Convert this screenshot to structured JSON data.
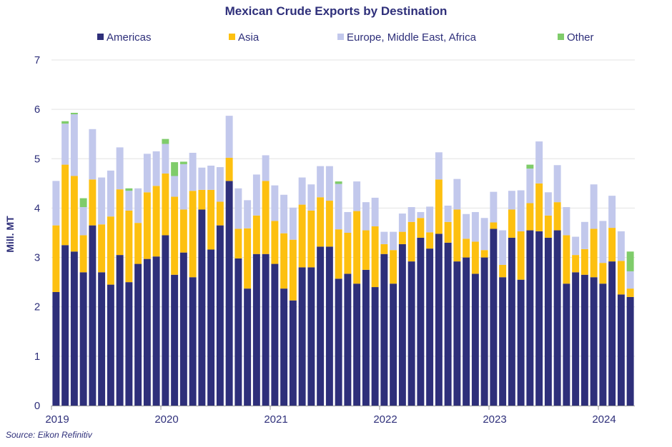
{
  "chart_data": {
    "type": "bar",
    "stacked": true,
    "title": "Mexican Crude Exports by Destination",
    "ylabel": "Mill. MT",
    "xlabel": "",
    "ylim": [
      0,
      7
    ],
    "yticks": [
      0,
      1,
      2,
      3,
      4,
      5,
      6,
      7
    ],
    "grid": "horizontal",
    "legend_position": "top",
    "source": "Source: Eikon Refinitiv",
    "x_year_labels": [
      {
        "label": "2019",
        "index": 0
      },
      {
        "label": "2020",
        "index": 12
      },
      {
        "label": "2021",
        "index": 24
      },
      {
        "label": "2022",
        "index": 36
      },
      {
        "label": "2023",
        "index": 48
      },
      {
        "label": "2024",
        "index": 60
      }
    ],
    "categories": [
      "Jan 2019",
      "Feb 2019",
      "Mar 2019",
      "Apr 2019",
      "May 2019",
      "Jun 2019",
      "Jul 2019",
      "Aug 2019",
      "Sep 2019",
      "Oct 2019",
      "Nov 2019",
      "Dec 2019",
      "Jan 2020",
      "Feb 2020",
      "Mar 2020",
      "Apr 2020",
      "May 2020",
      "Jun 2020",
      "Jul 2020",
      "Aug 2020",
      "Sep 2020",
      "Oct 2020",
      "Nov 2020",
      "Dec 2020",
      "Jan 2021",
      "Feb 2021",
      "Mar 2021",
      "Apr 2021",
      "May 2021",
      "Jun 2021",
      "Jul 2021",
      "Aug 2021",
      "Sep 2021",
      "Oct 2021",
      "Nov 2021",
      "Dec 2021",
      "Jan 2022",
      "Feb 2022",
      "Mar 2022",
      "Apr 2022",
      "May 2022",
      "Jun 2022",
      "Jul 2022",
      "Aug 2022",
      "Sep 2022",
      "Oct 2022",
      "Nov 2022",
      "Dec 2022",
      "Jan 2023",
      "Feb 2023",
      "Mar 2023",
      "Apr 2023",
      "May 2023",
      "Jun 2023",
      "Jul 2023",
      "Aug 2023",
      "Sep 2023",
      "Oct 2023",
      "Nov 2023",
      "Dec 2023",
      "Jan 2024",
      "Feb 2024",
      "Mar 2024",
      "Apr 2024"
    ],
    "series": [
      {
        "name": "Americas",
        "color": "#2e2f7a",
        "values": [
          2.3,
          3.25,
          3.12,
          2.7,
          3.65,
          2.7,
          2.45,
          3.05,
          2.5,
          2.87,
          2.97,
          3.02,
          3.45,
          2.65,
          3.1,
          2.6,
          3.97,
          3.16,
          3.65,
          4.55,
          2.98,
          2.37,
          3.07,
          3.07,
          2.87,
          2.37,
          2.13,
          2.8,
          2.8,
          3.22,
          3.22,
          2.57,
          2.67,
          2.47,
          2.75,
          2.4,
          3.07,
          2.47,
          3.27,
          2.92,
          3.4,
          3.18,
          3.48,
          3.3,
          2.92,
          3.0,
          2.67,
          3.0,
          3.58,
          2.6,
          3.4,
          2.55,
          3.55,
          3.53,
          3.4,
          3.55,
          2.47,
          2.7,
          2.65,
          2.6,
          2.47,
          2.92,
          2.25,
          2.2
        ]
      },
      {
        "name": "Asia",
        "color": "#fdc010",
        "values": [
          1.35,
          1.63,
          1.53,
          0.75,
          0.93,
          0.97,
          1.38,
          1.33,
          1.45,
          0.83,
          1.35,
          1.43,
          1.25,
          1.58,
          0.87,
          1.75,
          0.4,
          1.21,
          0.48,
          0.47,
          0.6,
          1.22,
          0.78,
          1.48,
          0.87,
          1.12,
          1.23,
          1.27,
          1.15,
          1.0,
          0.93,
          1.0,
          0.83,
          1.47,
          0.8,
          1.23,
          0.2,
          0.68,
          0.25,
          0.8,
          0.4,
          0.33,
          1.1,
          0.42,
          1.05,
          0.38,
          0.65,
          0.15,
          0.13,
          0.25,
          0.57,
          0.98,
          0.55,
          0.97,
          0.45,
          0.57,
          0.98,
          0.35,
          0.52,
          0.98,
          0.42,
          0.68,
          0.68,
          0.17
        ]
      },
      {
        "name": "Europe, Middle East, Africa",
        "color": "#c2c8ec",
        "values": [
          0.9,
          0.83,
          1.25,
          0.57,
          1.02,
          0.95,
          0.93,
          0.85,
          0.4,
          0.7,
          0.78,
          0.7,
          0.6,
          0.42,
          0.92,
          0.77,
          0.45,
          0.49,
          0.7,
          0.85,
          0.82,
          0.57,
          0.83,
          0.52,
          0.72,
          0.78,
          0.65,
          0.55,
          0.53,
          0.63,
          0.7,
          0.92,
          0.42,
          0.6,
          0.57,
          0.58,
          0.25,
          0.37,
          0.37,
          0.3,
          0.12,
          0.52,
          0.55,
          0.33,
          0.62,
          0.5,
          0.6,
          0.65,
          0.62,
          0.7,
          0.38,
          0.83,
          0.7,
          0.85,
          0.47,
          0.75,
          0.57,
          0.37,
          0.55,
          0.9,
          0.85,
          0.65,
          0.6,
          0.35
        ]
      },
      {
        "name": "Other",
        "color": "#7fcc6a",
        "values": [
          0,
          0.05,
          0.03,
          0.18,
          0,
          0,
          0,
          0,
          0.05,
          0,
          0,
          0,
          0.1,
          0.28,
          0.05,
          0,
          0,
          0,
          0,
          0,
          0,
          0,
          0,
          0,
          0,
          0,
          0,
          0,
          0,
          0,
          0,
          0.05,
          0,
          0,
          0,
          0,
          0,
          0,
          0,
          0,
          0,
          0,
          0,
          0,
          0,
          0,
          0,
          0,
          0,
          0,
          0,
          0,
          0.08,
          0,
          0,
          0,
          0,
          0,
          0,
          0,
          0,
          0,
          0,
          0.4
        ]
      }
    ]
  }
}
